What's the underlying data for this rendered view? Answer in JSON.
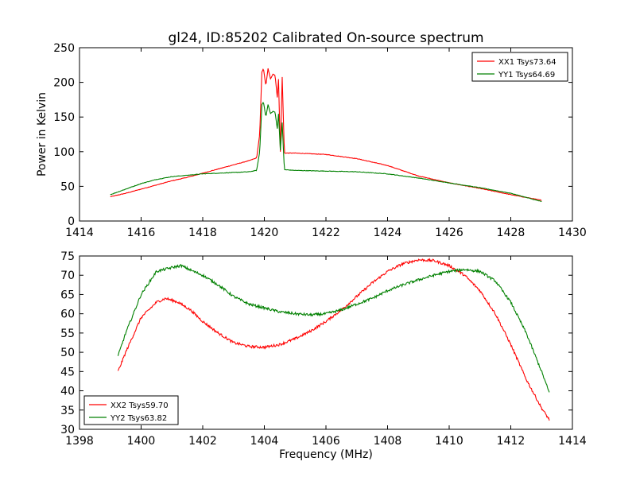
{
  "figure": {
    "title": "gl24, ID:85202 Calibrated On-source spectrum",
    "ylabel": "Power in Kelvin",
    "xlabel": "Frequency (MHz)"
  },
  "chart_data": [
    {
      "type": "line",
      "title": "gl24, ID:85202 Calibrated On-source spectrum",
      "xlabel": "",
      "ylabel": "Power in Kelvin",
      "xlim": [
        1414,
        1430
      ],
      "ylim": [
        0,
        250
      ],
      "xticks": [
        1414,
        1416,
        1418,
        1420,
        1422,
        1424,
        1426,
        1428,
        1430
      ],
      "yticks": [
        0,
        50,
        100,
        150,
        200,
        250
      ],
      "grid": false,
      "legend_position": "top-right",
      "series": [
        {
          "name": "XX1 Tsys73.64",
          "color": "#ff0000",
          "points": [
            [
              1415.0,
              35
            ],
            [
              1415.5,
              40
            ],
            [
              1416.0,
              46
            ],
            [
              1416.5,
              52
            ],
            [
              1417.0,
              58
            ],
            [
              1417.5,
              63
            ],
            [
              1418.0,
              69
            ],
            [
              1418.5,
              75
            ],
            [
              1419.0,
              81
            ],
            [
              1419.5,
              87
            ],
            [
              1419.75,
              91
            ],
            [
              1419.85,
              125
            ],
            [
              1419.92,
              215
            ],
            [
              1419.97,
              220
            ],
            [
              1420.05,
              195
            ],
            [
              1420.12,
              220
            ],
            [
              1420.2,
              205
            ],
            [
              1420.28,
              212
            ],
            [
              1420.35,
              210
            ],
            [
              1420.42,
              178
            ],
            [
              1420.46,
              205
            ],
            [
              1420.52,
              100
            ],
            [
              1420.58,
              208
            ],
            [
              1420.65,
              98
            ],
            [
              1421.0,
              98
            ],
            [
              1422.0,
              96
            ],
            [
              1423.0,
              90
            ],
            [
              1424.0,
              80
            ],
            [
              1425.0,
              65
            ],
            [
              1426.0,
              55
            ],
            [
              1427.0,
              47
            ],
            [
              1428.0,
              38
            ],
            [
              1429.0,
              30
            ]
          ]
        },
        {
          "name": "YY1 Tsys64.69",
          "color": "#008000",
          "points": [
            [
              1415.0,
              38
            ],
            [
              1415.5,
              46
            ],
            [
              1416.0,
              54
            ],
            [
              1416.5,
              60
            ],
            [
              1417.0,
              64
            ],
            [
              1417.5,
              66
            ],
            [
              1418.0,
              68
            ],
            [
              1418.5,
              69
            ],
            [
              1419.0,
              70
            ],
            [
              1419.5,
              71
            ],
            [
              1419.75,
              73
            ],
            [
              1419.85,
              100
            ],
            [
              1419.92,
              168
            ],
            [
              1419.97,
              172
            ],
            [
              1420.05,
              150
            ],
            [
              1420.12,
              168
            ],
            [
              1420.2,
              155
            ],
            [
              1420.28,
              158
            ],
            [
              1420.35,
              157
            ],
            [
              1420.42,
              133
            ],
            [
              1420.46,
              155
            ],
            [
              1420.52,
              102
            ],
            [
              1420.58,
              142
            ],
            [
              1420.65,
              74
            ],
            [
              1421.0,
              73
            ],
            [
              1422.0,
              72
            ],
            [
              1423.0,
              71
            ],
            [
              1424.0,
              68
            ],
            [
              1425.0,
              62
            ],
            [
              1426.0,
              55
            ],
            [
              1427.0,
              48
            ],
            [
              1428.0,
              40
            ],
            [
              1429.0,
              28
            ]
          ]
        }
      ]
    },
    {
      "type": "line",
      "title": "",
      "xlabel": "Frequency (MHz)",
      "ylabel": "",
      "xlim": [
        1398,
        1414
      ],
      "ylim": [
        30,
        75
      ],
      "xticks": [
        1398,
        1400,
        1402,
        1404,
        1406,
        1408,
        1410,
        1412,
        1414
      ],
      "yticks": [
        30,
        35,
        40,
        45,
        50,
        55,
        60,
        65,
        70,
        75
      ],
      "grid": false,
      "legend_position": "bottom-left",
      "series": [
        {
          "name": "XX2 Tsys59.70",
          "color": "#ff0000",
          "points": [
            [
              1399.25,
              45
            ],
            [
              1399.5,
              50
            ],
            [
              1400.0,
              59
            ],
            [
              1400.5,
              63
            ],
            [
              1400.8,
              64
            ],
            [
              1401.2,
              63
            ],
            [
              1401.6,
              61
            ],
            [
              1402.0,
              58
            ],
            [
              1402.5,
              55
            ],
            [
              1403.0,
              52.5
            ],
            [
              1403.5,
              51.5
            ],
            [
              1404.0,
              51.3
            ],
            [
              1404.5,
              52
            ],
            [
              1405.0,
              53.5
            ],
            [
              1405.5,
              55.5
            ],
            [
              1406.0,
              58
            ],
            [
              1406.5,
              61
            ],
            [
              1407.0,
              64.5
            ],
            [
              1407.5,
              68
            ],
            [
              1408.0,
              71
            ],
            [
              1408.5,
              73
            ],
            [
              1409.0,
              74
            ],
            [
              1409.5,
              73.8
            ],
            [
              1410.0,
              72.5
            ],
            [
              1410.5,
              70
            ],
            [
              1411.0,
              66
            ],
            [
              1411.5,
              60
            ],
            [
              1412.0,
              52
            ],
            [
              1412.5,
              43
            ],
            [
              1413.0,
              35.5
            ],
            [
              1413.25,
              32.5
            ]
          ]
        },
        {
          "name": "YY2 Tsys63.82",
          "color": "#008000",
          "points": [
            [
              1399.25,
              49
            ],
            [
              1399.5,
              55
            ],
            [
              1400.0,
              65
            ],
            [
              1400.5,
              71
            ],
            [
              1401.0,
              72
            ],
            [
              1401.3,
              72.5
            ],
            [
              1401.7,
              71
            ],
            [
              1402.0,
              70
            ],
            [
              1402.5,
              67.5
            ],
            [
              1403.0,
              64.5
            ],
            [
              1403.5,
              62.5
            ],
            [
              1404.0,
              61.5
            ],
            [
              1404.5,
              60.5
            ],
            [
              1405.0,
              60
            ],
            [
              1405.5,
              59.7
            ],
            [
              1406.0,
              60
            ],
            [
              1406.5,
              61
            ],
            [
              1407.0,
              62.5
            ],
            [
              1407.5,
              64
            ],
            [
              1408.0,
              66
            ],
            [
              1408.5,
              67.5
            ],
            [
              1409.0,
              68.8
            ],
            [
              1409.5,
              70
            ],
            [
              1410.0,
              71
            ],
            [
              1410.5,
              71.5
            ],
            [
              1411.0,
              71
            ],
            [
              1411.5,
              68.5
            ],
            [
              1412.0,
              63
            ],
            [
              1412.5,
              55
            ],
            [
              1413.0,
              45
            ],
            [
              1413.25,
              39.5
            ]
          ]
        }
      ]
    }
  ]
}
